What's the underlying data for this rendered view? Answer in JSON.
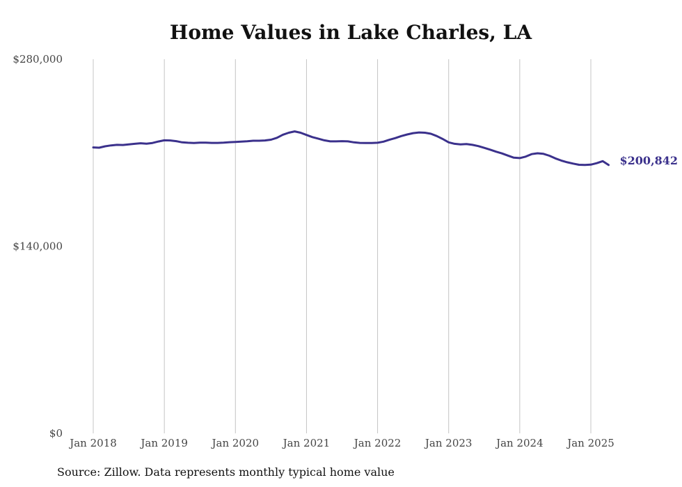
{
  "chart_data": {
    "type": "line",
    "title": "Home Values in Lake Charles, LA",
    "xlabel": "",
    "ylabel": "",
    "ylim": [
      0,
      280000
    ],
    "y_ticks": [
      0,
      140000,
      280000
    ],
    "y_tick_labels": [
      "$0",
      "$140,000",
      "$280,000"
    ],
    "x_range": [
      "2018-01",
      "2025-04"
    ],
    "x_ticks": [
      "2018-01",
      "2019-01",
      "2020-01",
      "2021-01",
      "2022-01",
      "2023-01",
      "2024-01",
      "2025-01"
    ],
    "x_tick_labels": [
      "Jan 2018",
      "Jan 2019",
      "Jan 2020",
      "Jan 2021",
      "Jan 2022",
      "Jan 2023",
      "Jan 2024",
      "Jan 2025"
    ],
    "grid": "vertical",
    "line_color": "#3b318c",
    "series": [
      {
        "x": [
          "2018-01",
          "2018-02",
          "2018-03",
          "2018-04",
          "2018-05",
          "2018-06",
          "2018-07",
          "2018-08",
          "2018-09",
          "2018-10",
          "2018-11",
          "2018-12",
          "2019-01",
          "2019-02",
          "2019-03",
          "2019-04",
          "2019-05",
          "2019-06",
          "2019-07",
          "2019-08",
          "2019-09",
          "2019-10",
          "2019-11",
          "2019-12",
          "2020-01",
          "2020-02",
          "2020-03",
          "2020-04",
          "2020-05",
          "2020-06",
          "2020-07",
          "2020-08",
          "2020-09",
          "2020-10",
          "2020-11",
          "2020-12",
          "2021-01",
          "2021-02",
          "2021-03",
          "2021-04",
          "2021-05",
          "2021-06",
          "2021-07",
          "2021-08",
          "2021-09",
          "2021-10",
          "2021-11",
          "2021-12",
          "2022-01",
          "2022-02",
          "2022-03",
          "2022-04",
          "2022-05",
          "2022-06",
          "2022-07",
          "2022-08",
          "2022-09",
          "2022-10",
          "2022-11",
          "2022-12",
          "2023-01",
          "2023-02",
          "2023-03",
          "2023-04",
          "2023-05",
          "2023-06",
          "2023-07",
          "2023-08",
          "2023-09",
          "2023-10",
          "2023-11",
          "2023-12",
          "2024-01",
          "2024-02",
          "2024-03",
          "2024-04",
          "2024-05",
          "2024-06",
          "2024-07",
          "2024-08",
          "2024-09",
          "2024-10",
          "2024-11",
          "2024-12",
          "2025-01",
          "2025-02",
          "2025-03",
          "2025-04"
        ],
        "values": [
          214000,
          213800,
          214800,
          215500,
          215900,
          215800,
          216300,
          216700,
          217100,
          216800,
          217300,
          218400,
          219300,
          219200,
          218700,
          217800,
          217500,
          217300,
          217600,
          217600,
          217400,
          217400,
          217600,
          217900,
          218100,
          218300,
          218600,
          219000,
          219000,
          219200,
          219800,
          221200,
          223500,
          225000,
          226000,
          225000,
          223300,
          221700,
          220500,
          219300,
          218500,
          218500,
          218700,
          218500,
          217800,
          217400,
          217300,
          217300,
          217500,
          218300,
          219700,
          221000,
          222500,
          223700,
          224700,
          225200,
          225000,
          224200,
          222500,
          220300,
          217800,
          216700,
          216300,
          216500,
          215900,
          215000,
          213700,
          212300,
          210800,
          209500,
          207900,
          206300,
          206000,
          207100,
          209000,
          209600,
          209200,
          207800,
          205800,
          204200,
          202900,
          201900,
          201000,
          200900,
          201100,
          202200,
          203700,
          200842
        ]
      }
    ],
    "end_label": "$200,842"
  },
  "source_note": "Source: Zillow. Data represents monthly typical home value"
}
